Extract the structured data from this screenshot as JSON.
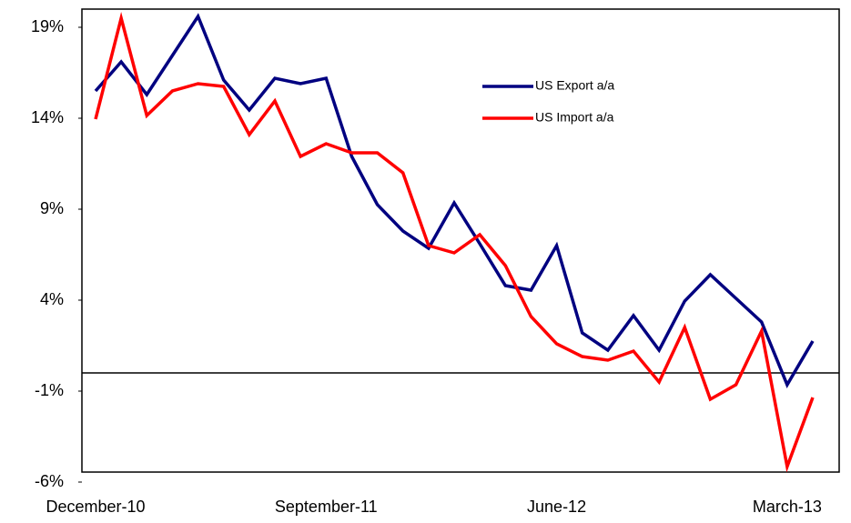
{
  "chart_data": {
    "type": "line",
    "categories": [
      "December-10",
      null,
      null,
      null,
      null,
      null,
      null,
      null,
      null,
      "September-11",
      null,
      null,
      null,
      null,
      null,
      null,
      null,
      null,
      "June-12",
      null,
      null,
      null,
      null,
      null,
      null,
      null,
      null,
      "March-13",
      null
    ],
    "series": [
      {
        "name": "US Export a/a",
        "color": "#000080",
        "values": [
          15.5,
          17.1,
          15.3,
          17.45,
          19.6,
          16.1,
          14.45,
          16.2,
          15.9,
          16.2,
          11.9,
          9.25,
          7.8,
          6.85,
          9.35,
          7.1,
          4.8,
          4.55,
          7.0,
          2.2,
          1.25,
          3.15,
          1.25,
          3.95,
          5.4,
          4.1,
          2.8,
          -0.65,
          1.75
        ]
      },
      {
        "name": "US Import a/a",
        "color": "#ff0000",
        "values": [
          13.95,
          19.5,
          14.15,
          15.5,
          15.9,
          15.75,
          13.1,
          14.95,
          11.9,
          12.6,
          12.1,
          12.1,
          11.0,
          7.0,
          6.6,
          7.6,
          5.9,
          3.1,
          1.6,
          0.9,
          0.7,
          1.2,
          -0.5,
          2.5,
          -1.45,
          -0.65,
          2.3,
          -5.15,
          -1.35
        ]
      }
    ],
    "ylim": [
      -6,
      20
    ],
    "yticks": [
      {
        "value": -6,
        "label": "-6%"
      },
      {
        "value": -1,
        "label": "-1%"
      },
      {
        "value": 4,
        "label": "4%"
      },
      {
        "value": 9,
        "label": "9%"
      },
      {
        "value": 14,
        "label": "14%"
      },
      {
        "value": 19,
        "label": "19%"
      }
    ],
    "grid": false,
    "legend": "upper right"
  }
}
